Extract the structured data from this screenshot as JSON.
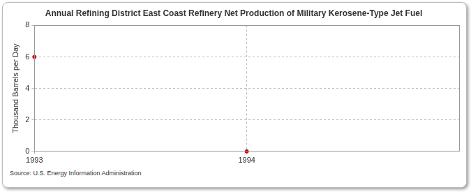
{
  "chart_data": {
    "type": "scatter",
    "title": "Annual Refining District East Coast Refinery Net Production of Military Kerosene-Type Jet Fuel",
    "ylabel": "Thousand Barrels per Day",
    "source": "Source: U.S. Energy Information Administration",
    "x": [
      1993,
      1994
    ],
    "values": [
      6,
      0
    ],
    "color": "#cc0000",
    "marker": "circle",
    "xlim": [
      1993,
      1995
    ],
    "xticks": [
      1993,
      1994
    ],
    "ylim": [
      0,
      8
    ],
    "yticks": [
      0,
      2,
      4,
      6,
      8
    ],
    "grid": true
  }
}
